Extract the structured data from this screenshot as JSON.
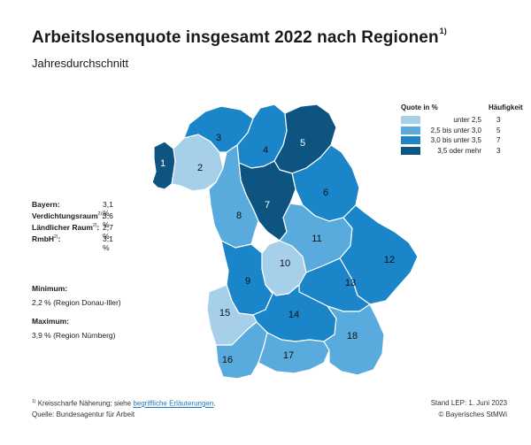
{
  "title": "Arbeitslosenquote insgesamt 2022 nach Regionen",
  "title_footnote": "1)",
  "subtitle": "Jahresdurchschnitt",
  "colors": {
    "c1": "#a6cfe9",
    "c2": "#5aabdd",
    "c3": "#1a85c8",
    "c4": "#0d5580",
    "border": "#ffffff"
  },
  "legend": {
    "title_left": "Quote in %",
    "title_right": "Häufigkeit",
    "rows": [
      {
        "text": "unter  2,5",
        "count": "3",
        "color": "#a6cfe9"
      },
      {
        "text": "2,5  bis unter  3,0",
        "count": "5",
        "color": "#5aabdd"
      },
      {
        "text": "3,0  bis unter  3,5",
        "count": "7",
        "color": "#1a85c8"
      },
      {
        "text": "3,5  oder mehr",
        "count": "3",
        "color": "#0d5580"
      }
    ]
  },
  "stats": [
    {
      "label": "Bayern:",
      "sup": "",
      "value": "3,1 %"
    },
    {
      "label": "Verdichtungsraum",
      "sup": "2)",
      "value": "3,6 %"
    },
    {
      "label": "Ländlicher Raum",
      "sup": "2)",
      "value": "2,7 %"
    },
    {
      "label": "RmbH",
      "sup": "2)",
      "value": "3,1 %"
    }
  ],
  "minimum": {
    "label": "Minimum:",
    "value": "2,2 %  (Region Donau-Iller)"
  },
  "maximum": {
    "label": "Maximum:",
    "value": "3,9 %  (Region Nürnberg)"
  },
  "regions": [
    {
      "id": "1",
      "class": 4
    },
    {
      "id": "2",
      "class": 1
    },
    {
      "id": "3",
      "class": 3
    },
    {
      "id": "4",
      "class": 3
    },
    {
      "id": "5",
      "class": 4
    },
    {
      "id": "6",
      "class": 3
    },
    {
      "id": "7",
      "class": 4
    },
    {
      "id": "8",
      "class": 2
    },
    {
      "id": "9",
      "class": 3
    },
    {
      "id": "10",
      "class": 1
    },
    {
      "id": "11",
      "class": 2
    },
    {
      "id": "12",
      "class": 3
    },
    {
      "id": "13",
      "class": 3
    },
    {
      "id": "14",
      "class": 3
    },
    {
      "id": "15",
      "class": 1
    },
    {
      "id": "16",
      "class": 2
    },
    {
      "id": "17",
      "class": 2
    },
    {
      "id": "18",
      "class": 2
    }
  ],
  "footer": {
    "note_mark": "1)",
    "note_text": "Kreisscharfe Näherung; siehe ",
    "note_link": "begriffliche Erläuterungen",
    "note_end": ".",
    "source": "Quelle: Bundesagentur für Arbeit",
    "stand": "Stand LEP: 1. Juni 2023",
    "copyright": "© Bayerisches StMWi"
  }
}
